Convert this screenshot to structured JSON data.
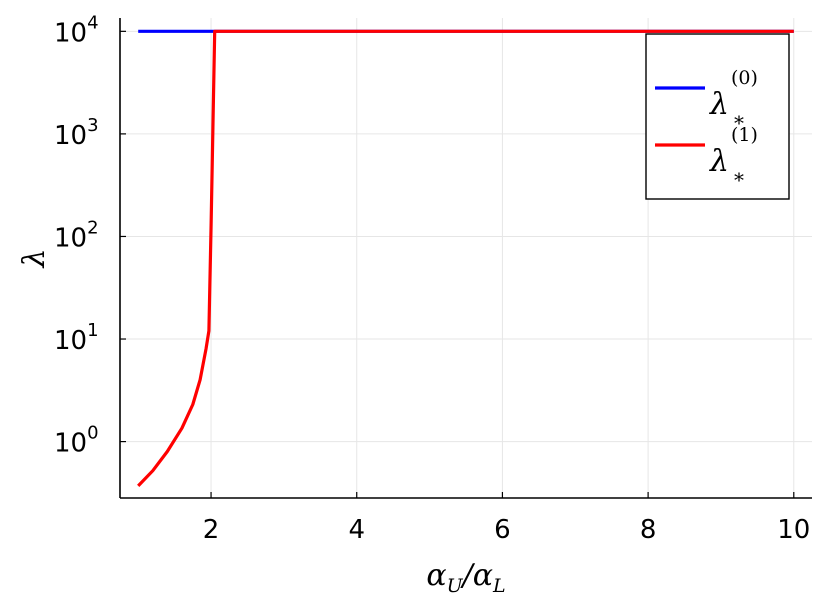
{
  "chart_data": {
    "type": "line",
    "xlabel": {
      "main": "α",
      "sub1": "U",
      "slash": "/",
      "main2": "α",
      "sub2": "L"
    },
    "ylabel": "λ",
    "xlim": [
      0.75,
      10.25
    ],
    "ylim_log10": [
      -0.55,
      4.13
    ],
    "yscale": "log",
    "grid": true,
    "legend_position": "top-right",
    "xticks": [
      {
        "value": 2,
        "label": "2"
      },
      {
        "value": 4,
        "label": "4"
      },
      {
        "value": 6,
        "label": "6"
      },
      {
        "value": 8,
        "label": "8"
      },
      {
        "value": 10,
        "label": "10"
      }
    ],
    "yticks": [
      {
        "exp": 0,
        "base": "10",
        "sup": "0"
      },
      {
        "exp": 1,
        "base": "10",
        "sup": "1"
      },
      {
        "exp": 2,
        "base": "10",
        "sup": "2"
      },
      {
        "exp": 3,
        "base": "10",
        "sup": "3"
      },
      {
        "exp": 4,
        "base": "10",
        "sup": "4"
      }
    ],
    "series": [
      {
        "legend": {
          "symbol": "λ",
          "sup": "(0)",
          "sub": "*"
        },
        "color": "#0000ff",
        "x": [
          1.0,
          2.05,
          10.0
        ],
        "y": [
          10000,
          10000,
          10000
        ]
      },
      {
        "legend": {
          "symbol": "λ",
          "sup": "(1)",
          "sub": "*"
        },
        "color": "#ff0000",
        "x": [
          1.0,
          1.2,
          1.4,
          1.6,
          1.75,
          1.85,
          1.93,
          1.97,
          2.0,
          2.05,
          10.0
        ],
        "y": [
          0.37,
          0.52,
          0.8,
          1.35,
          2.3,
          4.0,
          8.0,
          12.0,
          130,
          10000,
          10000
        ]
      }
    ]
  }
}
